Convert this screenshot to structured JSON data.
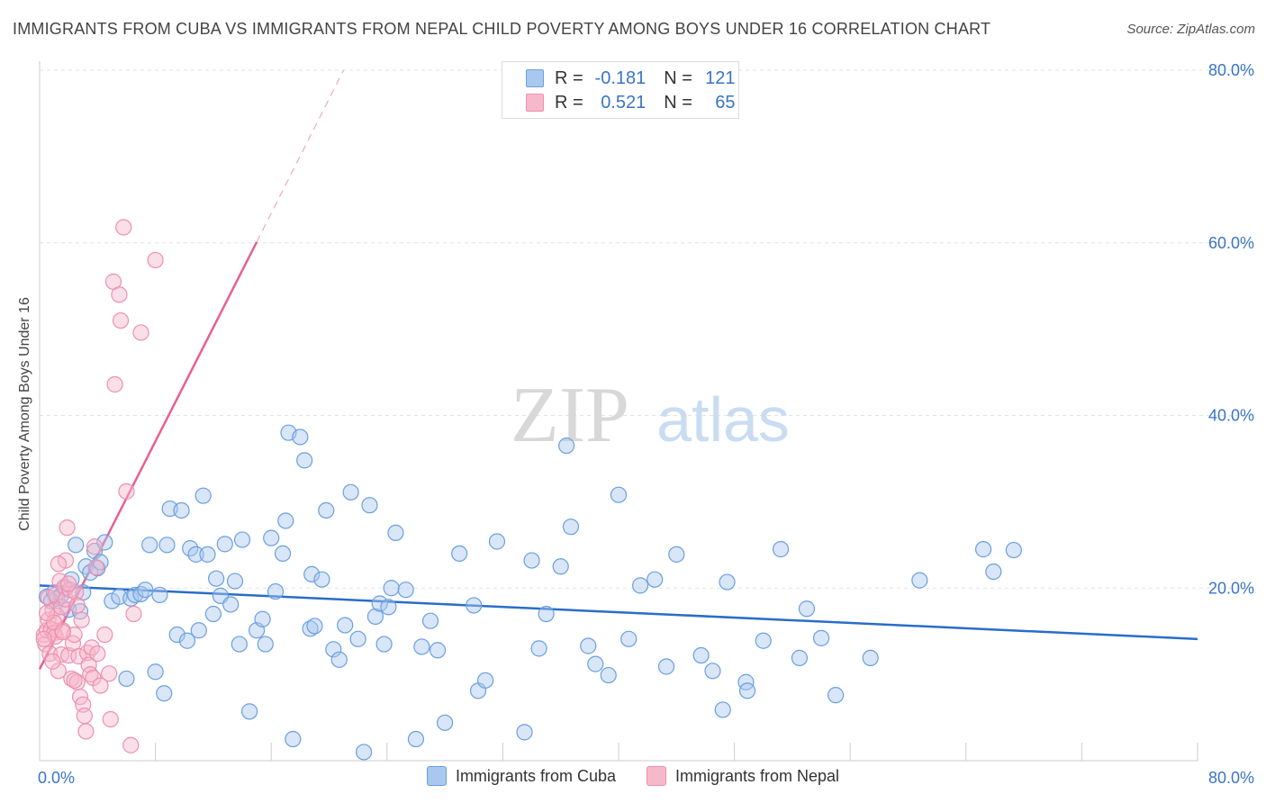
{
  "title": "IMMIGRANTS FROM CUBA VS IMMIGRANTS FROM NEPAL CHILD POVERTY AMONG BOYS UNDER 16 CORRELATION CHART",
  "source": "Source: ZipAtlas.com",
  "watermark": {
    "zip": "ZIP",
    "atlas": "atlas"
  },
  "legend": {
    "r_label": "R =",
    "n_label": "N =",
    "cuba": {
      "r": "-0.181",
      "n": "121"
    },
    "nepal": {
      "r": "0.521",
      "n": "65"
    }
  },
  "colors": {
    "cuba_fill": "#a9c8f0",
    "cuba_stroke": "#6a9fe0",
    "cuba_line": "#2a6dc9",
    "nepal_fill": "#f6b9cc",
    "nepal_stroke": "#ee8fae",
    "nepal_line": "#e8608c",
    "axis_text": "#3a74c8"
  },
  "chart_data": {
    "type": "scatter",
    "title": "IMMIGRANTS FROM CUBA VS IMMIGRANTS FROM NEPAL CHILD POVERTY AMONG BOYS UNDER 16 CORRELATION CHART",
    "ylabel": "Child Poverty Among Boys Under 16",
    "xlabel": "",
    "xlim": [
      0,
      80
    ],
    "ylim": [
      0,
      80
    ],
    "x_tick_labels": [
      "0.0%",
      "80.0%"
    ],
    "y_tick_labels": [
      "20.0%",
      "40.0%",
      "60.0%",
      "80.0%"
    ],
    "y_ticks": [
      20,
      40,
      60,
      80
    ],
    "grid": true,
    "legend_position": "bottom",
    "series": [
      {
        "name": "Immigrants from Cuba",
        "r": -0.181,
        "n": 121,
        "trend": {
          "x": [
            0,
            80
          ],
          "y": [
            20.3,
            14.1
          ],
          "style": "solid"
        },
        "points": [
          [
            0.5,
            19
          ],
          [
            0.8,
            18.5
          ],
          [
            1.0,
            19.5
          ],
          [
            1.2,
            18.8
          ],
          [
            1.5,
            19.2
          ],
          [
            1.8,
            20
          ],
          [
            2.0,
            17.5
          ],
          [
            2.2,
            21
          ],
          [
            2.5,
            25
          ],
          [
            2.8,
            17.3
          ],
          [
            3.0,
            19.5
          ],
          [
            3.2,
            22.5
          ],
          [
            3.5,
            21.8
          ],
          [
            3.8,
            24.3
          ],
          [
            4.0,
            22.3
          ],
          [
            4.2,
            23
          ],
          [
            4.5,
            25.3
          ],
          [
            5.0,
            18.5
          ],
          [
            5.5,
            19
          ],
          [
            6.0,
            9.5
          ],
          [
            6.3,
            18.8
          ],
          [
            6.6,
            19.2
          ],
          [
            7.0,
            19.3
          ],
          [
            7.3,
            19.8
          ],
          [
            7.6,
            25
          ],
          [
            8.0,
            10.3
          ],
          [
            8.3,
            19.2
          ],
          [
            8.6,
            7.8
          ],
          [
            8.8,
            25
          ],
          [
            9.0,
            29.2
          ],
          [
            9.5,
            14.6
          ],
          [
            9.8,
            29
          ],
          [
            10.2,
            13.9
          ],
          [
            10.4,
            24.6
          ],
          [
            10.8,
            23.9
          ],
          [
            11.0,
            15.1
          ],
          [
            11.3,
            30.7
          ],
          [
            11.6,
            23.9
          ],
          [
            12.0,
            17
          ],
          [
            12.2,
            21.1
          ],
          [
            12.5,
            19.1
          ],
          [
            12.8,
            25.1
          ],
          [
            13.2,
            18.1
          ],
          [
            13.5,
            20.8
          ],
          [
            13.8,
            13.5
          ],
          [
            14.0,
            25.6
          ],
          [
            14.5,
            5.7
          ],
          [
            15.0,
            15.1
          ],
          [
            15.4,
            16.4
          ],
          [
            15.6,
            13.5
          ],
          [
            16.0,
            25.8
          ],
          [
            16.3,
            19.6
          ],
          [
            16.8,
            24
          ],
          [
            17.0,
            27.8
          ],
          [
            17.2,
            38
          ],
          [
            17.5,
            2.5
          ],
          [
            18.0,
            37.5
          ],
          [
            18.3,
            34.8
          ],
          [
            18.7,
            15.3
          ],
          [
            18.8,
            21.6
          ],
          [
            19.0,
            15.6
          ],
          [
            19.5,
            21
          ],
          [
            19.8,
            29
          ],
          [
            20.3,
            12.9
          ],
          [
            20.7,
            11.7
          ],
          [
            21.1,
            15.7
          ],
          [
            21.5,
            31.1
          ],
          [
            22.0,
            14.1
          ],
          [
            22.4,
            1
          ],
          [
            22.8,
            29.6
          ],
          [
            23.2,
            16.7
          ],
          [
            23.5,
            18.2
          ],
          [
            23.8,
            13.5
          ],
          [
            24.1,
            17.8
          ],
          [
            24.3,
            20
          ],
          [
            24.6,
            26.4
          ],
          [
            25.3,
            19.8
          ],
          [
            26.0,
            2.5
          ],
          [
            26.4,
            13.2
          ],
          [
            27.0,
            16.2
          ],
          [
            27.5,
            12.8
          ],
          [
            28.0,
            4.4
          ],
          [
            29.0,
            24
          ],
          [
            30.0,
            18
          ],
          [
            30.3,
            8.1
          ],
          [
            30.8,
            9.3
          ],
          [
            31.6,
            25.4
          ],
          [
            33.5,
            3.3
          ],
          [
            34.0,
            23.2
          ],
          [
            34.5,
            13
          ],
          [
            35.0,
            17
          ],
          [
            36.0,
            22.5
          ],
          [
            36.4,
            36.5
          ],
          [
            36.7,
            27.1
          ],
          [
            37.9,
            13.3
          ],
          [
            38.4,
            11.2
          ],
          [
            39.3,
            9.9
          ],
          [
            40.0,
            30.8
          ],
          [
            40.7,
            14.1
          ],
          [
            41.5,
            20.3
          ],
          [
            42.5,
            21
          ],
          [
            43.3,
            10.9
          ],
          [
            44.0,
            23.9
          ],
          [
            45.7,
            12.2
          ],
          [
            46.5,
            10.4
          ],
          [
            47.2,
            5.9
          ],
          [
            47.5,
            20.7
          ],
          [
            48.8,
            9.1
          ],
          [
            48.9,
            8.1
          ],
          [
            50.0,
            13.9
          ],
          [
            51.2,
            24.5
          ],
          [
            52.5,
            11.9
          ],
          [
            53.0,
            17.6
          ],
          [
            54.0,
            14.2
          ],
          [
            55.0,
            7.6
          ],
          [
            57.4,
            11.9
          ],
          [
            60.8,
            20.9
          ],
          [
            65.2,
            24.5
          ],
          [
            65.9,
            21.9
          ],
          [
            67.3,
            24.4
          ]
        ]
      },
      {
        "name": "Immigrants from Nepal",
        "r": 0.521,
        "n": 65,
        "trend": {
          "x": [
            0,
            15
          ],
          "y": [
            10.6,
            60.1
          ],
          "style": "solid",
          "extension": {
            "x": [
              15,
              21
            ],
            "y": [
              60.1,
              80
            ]
          }
        },
        "points": [
          [
            0.3,
            14.6
          ],
          [
            0.4,
            13.5
          ],
          [
            0.5,
            15.1
          ],
          [
            0.6,
            16.3
          ],
          [
            0.6,
            18.9
          ],
          [
            0.7,
            12.4
          ],
          [
            0.8,
            15.2
          ],
          [
            0.9,
            17.4
          ],
          [
            1.0,
            14.8
          ],
          [
            1.1,
            14.4
          ],
          [
            1.1,
            19.2
          ],
          [
            1.2,
            16.8
          ],
          [
            1.3,
            10.4
          ],
          [
            1.4,
            20.8
          ],
          [
            1.5,
            17.8
          ],
          [
            1.5,
            12.3
          ],
          [
            1.6,
            15.1
          ],
          [
            1.7,
            20.1
          ],
          [
            1.8,
            23.2
          ],
          [
            1.8,
            18.7
          ],
          [
            1.9,
            27
          ],
          [
            2.0,
            12.2
          ],
          [
            2.1,
            19.8
          ],
          [
            2.2,
            9.5
          ],
          [
            2.3,
            13.6
          ],
          [
            2.4,
            14.6
          ],
          [
            2.5,
            19.5
          ],
          [
            2.6,
            9.1
          ],
          [
            2.7,
            12.1
          ],
          [
            2.8,
            7.4
          ],
          [
            2.9,
            16.3
          ],
          [
            3.0,
            6.5
          ],
          [
            3.1,
            5.2
          ],
          [
            3.2,
            3.4
          ],
          [
            3.3,
            12.5
          ],
          [
            3.4,
            11.1
          ],
          [
            3.5,
            10
          ],
          [
            3.6,
            13.1
          ],
          [
            3.7,
            9.6
          ],
          [
            3.8,
            24.8
          ],
          [
            4.0,
            12.4
          ],
          [
            4.2,
            8.7
          ],
          [
            4.5,
            14.6
          ],
          [
            4.8,
            10.1
          ],
          [
            4.9,
            4.8
          ],
          [
            5.1,
            55.5
          ],
          [
            5.2,
            43.6
          ],
          [
            5.5,
            54
          ],
          [
            5.6,
            51
          ],
          [
            5.8,
            61.8
          ],
          [
            6.0,
            31.2
          ],
          [
            6.3,
            1.8
          ],
          [
            6.5,
            17
          ],
          [
            7.0,
            49.6
          ],
          [
            8.0,
            58
          ],
          [
            1.0,
            16
          ],
          [
            1.3,
            22.8
          ],
          [
            2.0,
            20.5
          ],
          [
            2.6,
            18
          ],
          [
            3.9,
            22.4
          ],
          [
            0.5,
            17.1
          ],
          [
            0.9,
            11.5
          ],
          [
            1.6,
            14.9
          ],
          [
            2.4,
            9.3
          ],
          [
            0.3,
            14.1
          ]
        ]
      }
    ]
  },
  "bottom_legend": {
    "cuba": "Immigrants from Cuba",
    "nepal": "Immigrants from Nepal"
  }
}
